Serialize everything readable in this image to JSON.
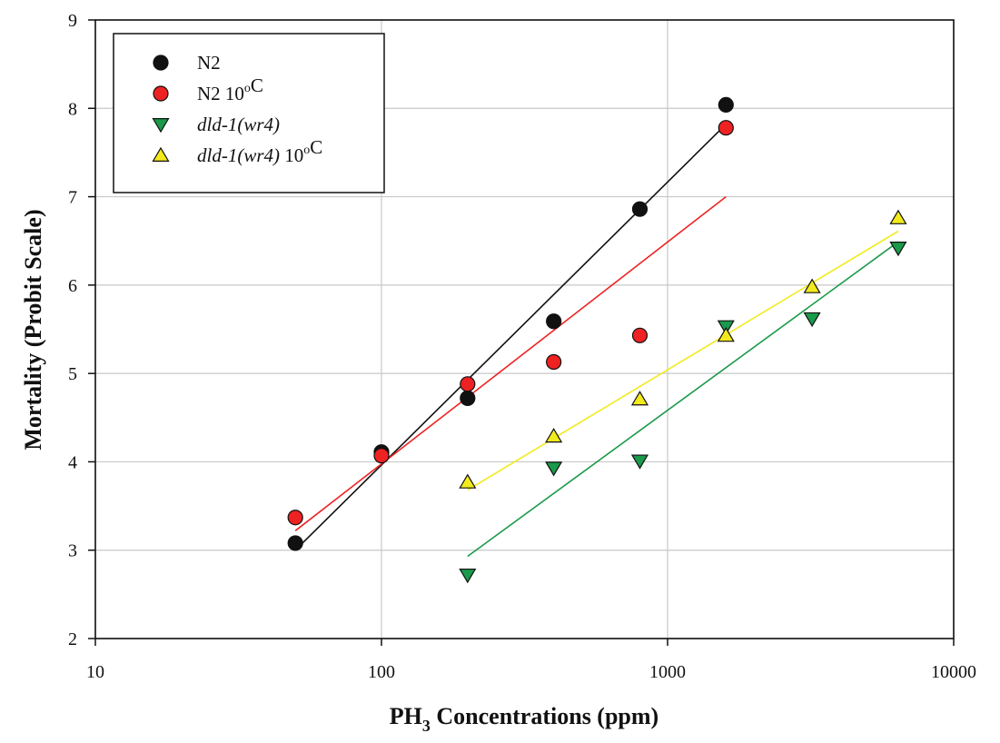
{
  "chart_data": {
    "type": "scatter",
    "xscale": "log",
    "xlim": [
      10,
      10000
    ],
    "ylim": [
      2,
      9
    ],
    "xticks": [
      10,
      100,
      1000,
      10000
    ],
    "yticks": [
      2,
      3,
      4,
      5,
      6,
      7,
      8,
      9
    ],
    "xlabel_main": "PH",
    "xlabel_sub": "3",
    "xlabel_rest": " Concentrations (ppm)",
    "ylabel": "Mortality (Probit Scale)",
    "grid": true,
    "legend_position": "top-left",
    "series": [
      {
        "name": "N2",
        "legend_parts": [
          {
            "text": "N2",
            "italic": false
          }
        ],
        "marker": "circle",
        "color": "#111111",
        "line_color": "#111111",
        "points": [
          [
            50,
            3.08
          ],
          [
            100,
            4.11
          ],
          [
            200,
            4.72
          ],
          [
            400,
            5.59
          ],
          [
            800,
            6.86
          ],
          [
            1600,
            8.04
          ]
        ],
        "fit": [
          [
            50,
            3.0
          ],
          [
            1600,
            7.82
          ]
        ]
      },
      {
        "name": "N2 10oC",
        "legend_parts": [
          {
            "text": "N2 10",
            "italic": false
          },
          {
            "text": "o",
            "sup": true
          },
          {
            "text": "C",
            "italic": false
          }
        ],
        "marker": "circle",
        "color": "#ee2222",
        "line_color": "#ee2222",
        "points": [
          [
            50,
            3.37
          ],
          [
            100,
            4.07
          ],
          [
            200,
            4.88
          ],
          [
            400,
            5.13
          ],
          [
            800,
            5.43
          ],
          [
            1600,
            7.78
          ]
        ],
        "fit": [
          [
            50,
            3.22
          ],
          [
            1600,
            7.0
          ]
        ]
      },
      {
        "name": "dld-1(wr4)",
        "legend_parts": [
          {
            "text": "dld-1(wr4)",
            "italic": true
          }
        ],
        "marker": "triangle-down",
        "color": "#1a9a4a",
        "line_color": "#1a9a4a",
        "points": [
          [
            200,
            2.72
          ],
          [
            400,
            3.93
          ],
          [
            800,
            4.01
          ],
          [
            1600,
            5.53
          ],
          [
            3200,
            5.62
          ],
          [
            6400,
            6.42
          ]
        ],
        "fit": [
          [
            200,
            2.93
          ],
          [
            6400,
            6.49
          ]
        ]
      },
      {
        "name": "dld-1(wr4) 10oC",
        "legend_parts": [
          {
            "text": "dld-1(wr4)",
            "italic": true
          },
          {
            "text": " 10",
            "italic": false
          },
          {
            "text": "o",
            "sup": true
          },
          {
            "text": "C",
            "italic": false
          }
        ],
        "marker": "triangle-up",
        "color": "#f2ea1c",
        "line_color": "#f2ea1c",
        "points": [
          [
            200,
            3.77
          ],
          [
            400,
            4.29
          ],
          [
            800,
            4.71
          ],
          [
            1600,
            5.43
          ],
          [
            3200,
            5.98
          ],
          [
            6400,
            6.76
          ]
        ],
        "fit": [
          [
            200,
            3.68
          ],
          [
            6400,
            6.61
          ]
        ]
      }
    ]
  }
}
